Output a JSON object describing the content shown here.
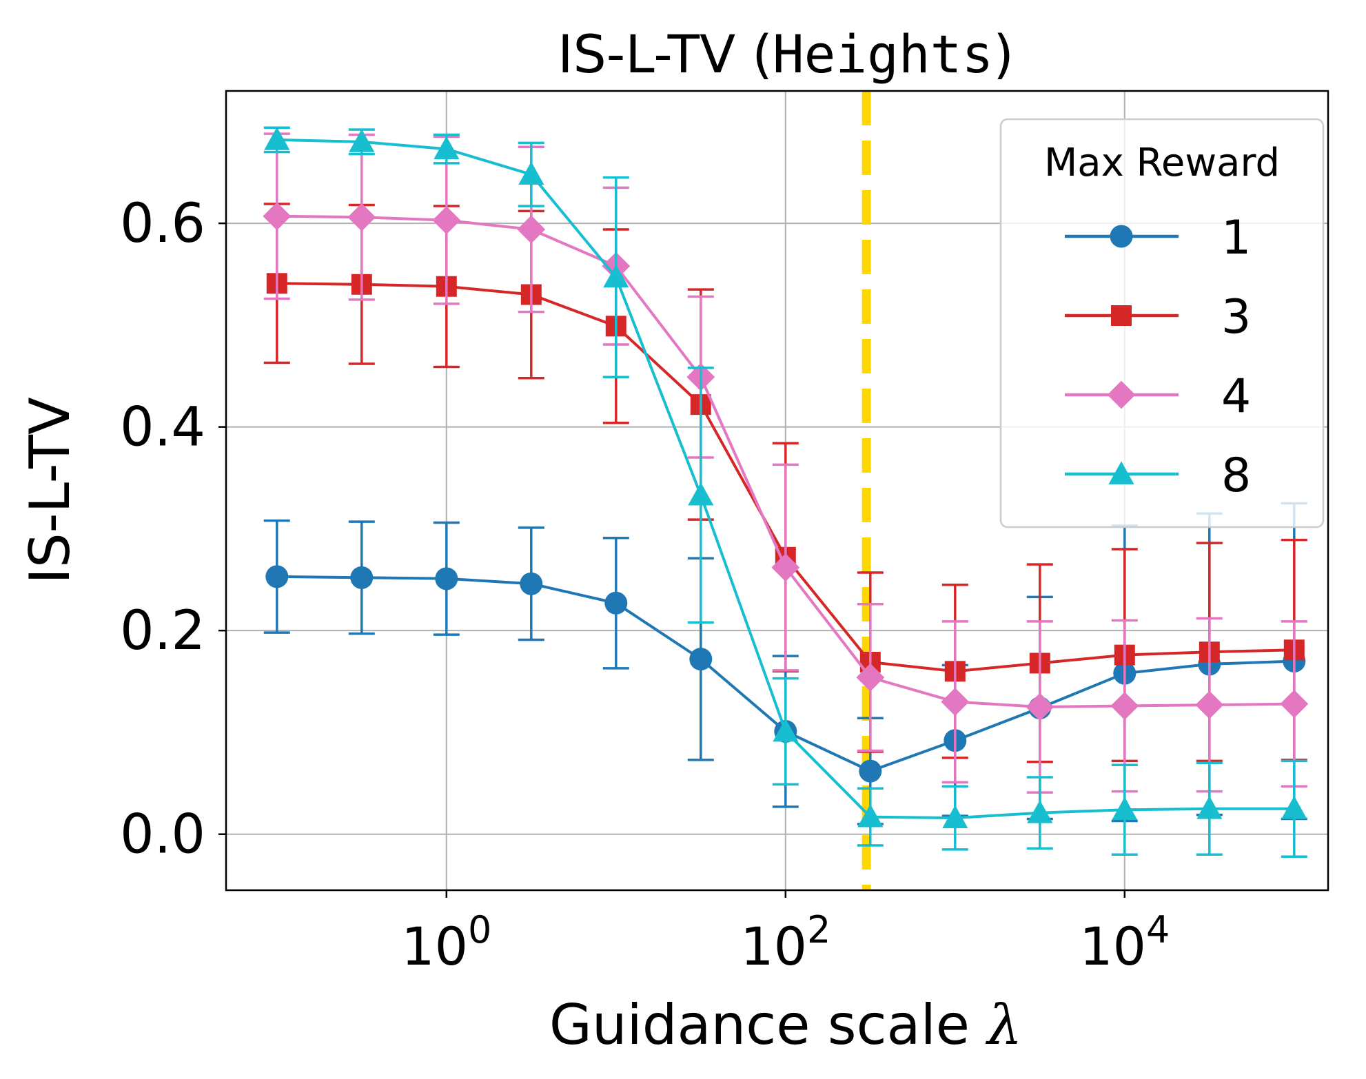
{
  "chart_data": {
    "type": "line",
    "title_prefix": "IS-L-TV (",
    "title_mono": "Heights",
    "title_suffix": ")",
    "xlabel_text": "Guidance scale ",
    "xlabel_symbol": "λ",
    "ylabel": "IS-L-TV",
    "xscale": "log",
    "x_exp_range": [
      -1.3,
      5.2
    ],
    "ylim": [
      -0.055,
      0.73
    ],
    "x_ticks": [
      {
        "exp": 0,
        "base": "10",
        "power": "0"
      },
      {
        "exp": 2,
        "base": "10",
        "power": "2"
      },
      {
        "exp": 4,
        "base": "10",
        "power": "4"
      }
    ],
    "y_ticks": [
      {
        "value": 0.0,
        "label": "0.0"
      },
      {
        "value": 0.2,
        "label": "0.2"
      },
      {
        "value": 0.4,
        "label": "0.4"
      },
      {
        "value": 0.6,
        "label": "0.6"
      }
    ],
    "grid": true,
    "legend": {
      "title": "Max Reward",
      "position": "top-right"
    },
    "vline": {
      "exp": 2.477,
      "color": "#FFD700",
      "style": "dashed"
    },
    "x_exps": [
      -1,
      -0.5,
      0,
      0.5,
      1,
      1.5,
      2,
      2.5,
      3,
      3.5,
      4,
      4.5,
      5
    ],
    "series": [
      {
        "name": "1",
        "color": "#1f77b4",
        "marker": "circle",
        "values": [
          0.253,
          0.252,
          0.251,
          0.246,
          0.227,
          0.172,
          0.101,
          0.062,
          0.092,
          0.124,
          0.158,
          0.167,
          0.17
        ],
        "err": [
          0.055,
          0.055,
          0.055,
          0.055,
          0.064,
          0.099,
          0.074,
          0.052,
          0.074,
          0.109,
          0.145,
          0.148,
          0.155
        ]
      },
      {
        "name": "3",
        "color": "#d62728",
        "marker": "square",
        "values": [
          0.541,
          0.54,
          0.538,
          0.53,
          0.499,
          0.422,
          0.272,
          0.169,
          0.16,
          0.168,
          0.176,
          0.179,
          0.181
        ],
        "err": [
          0.078,
          0.078,
          0.079,
          0.082,
          0.095,
          0.113,
          0.112,
          0.088,
          0.085,
          0.097,
          0.104,
          0.107,
          0.108
        ]
      },
      {
        "name": "4",
        "color": "#e377c2",
        "marker": "diamond",
        "values": [
          0.607,
          0.606,
          0.603,
          0.594,
          0.558,
          0.449,
          0.262,
          0.154,
          0.13,
          0.125,
          0.126,
          0.127,
          0.128
        ],
        "err": [
          0.081,
          0.081,
          0.082,
          0.081,
          0.077,
          0.079,
          0.101,
          0.072,
          0.079,
          0.084,
          0.084,
          0.085,
          0.081
        ]
      },
      {
        "name": "8",
        "color": "#17becf",
        "marker": "triangle",
        "values": [
          0.682,
          0.68,
          0.673,
          0.648,
          0.547,
          0.333,
          0.101,
          0.017,
          0.016,
          0.021,
          0.024,
          0.025,
          0.025
        ],
        "err": [
          0.012,
          0.012,
          0.014,
          0.031,
          0.098,
          0.125,
          0.052,
          0.028,
          0.031,
          0.035,
          0.044,
          0.045,
          0.047
        ]
      }
    ]
  }
}
